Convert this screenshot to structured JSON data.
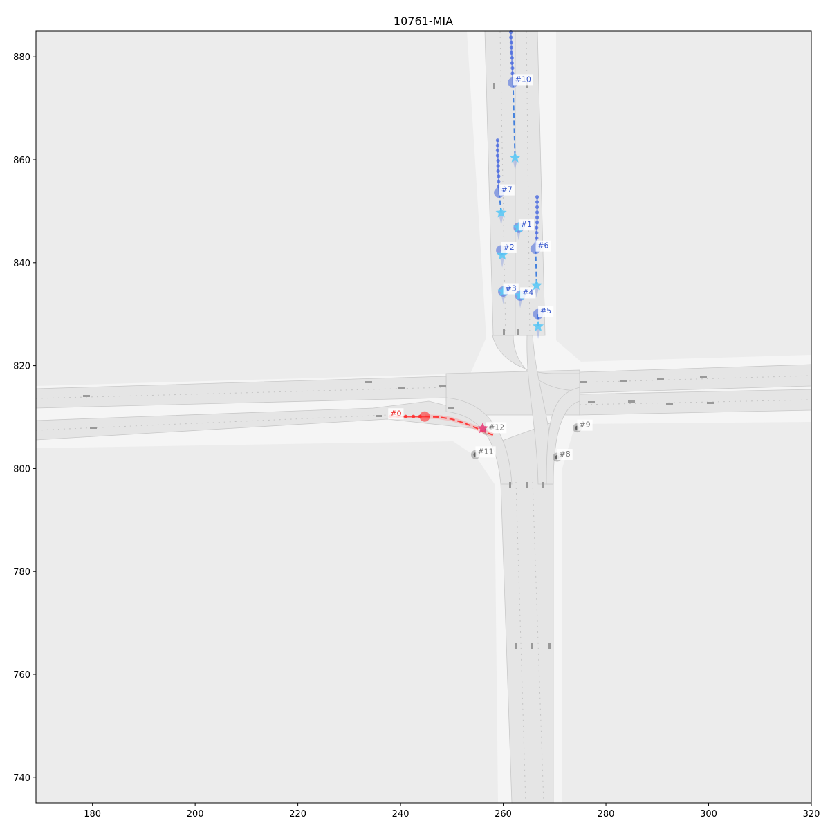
{
  "chart_data": {
    "type": "scatter",
    "title": "10761-MIA",
    "xlabel": "",
    "ylabel": "",
    "xlim": [
      169.0,
      320.0
    ],
    "ylim": [
      735.0,
      885.0
    ],
    "xticks": [
      "180",
      "200",
      "220",
      "240",
      "260",
      "280",
      "300",
      "320"
    ],
    "yticks": [
      "740",
      "760",
      "780",
      "800",
      "820",
      "840",
      "860",
      "880"
    ],
    "grid": false,
    "colors": {
      "background": "#ececec",
      "ego": "#ff2a2a",
      "ego_target": "#e8407a",
      "agent": "#4466dd",
      "agent_target": "#5bc8f5",
      "static": "#888888",
      "label_blue": "#3355cc",
      "label_red": "#ee2222",
      "label_gray": "#777777"
    },
    "ego": {
      "label": "#0",
      "current": [
        244.7,
        810.1
      ],
      "history": [
        [
          238.0,
          810.1
        ],
        [
          239.5,
          810.1
        ],
        [
          241.0,
          810.1
        ],
        [
          242.5,
          810.1
        ],
        [
          243.8,
          810.1
        ]
      ],
      "future": [
        [
          247.5,
          810.0
        ],
        [
          250.0,
          809.6
        ],
        [
          252.5,
          808.8
        ],
        [
          254.5,
          808.0
        ],
        [
          256.0,
          807.3
        ],
        [
          258.0,
          806.5
        ]
      ],
      "target": [
        256.0,
        807.8
      ]
    },
    "agents": [
      {
        "label": "#1",
        "current": [
          263.0,
          846.8
        ],
        "target": [
          263.0,
          846.8
        ],
        "history": []
      },
      {
        "label": "#2",
        "current": [
          259.6,
          842.4
        ],
        "target": [
          259.8,
          841.5
        ],
        "history": []
      },
      {
        "label": "#3",
        "current": [
          260.0,
          834.4
        ],
        "target": [
          260.0,
          834.4
        ],
        "history": []
      },
      {
        "label": "#4",
        "current": [
          263.3,
          833.6
        ],
        "target": [
          263.3,
          833.6
        ],
        "history": []
      },
      {
        "label": "#5",
        "current": [
          266.8,
          830.0
        ],
        "target": [
          266.8,
          827.6
        ],
        "history": []
      },
      {
        "label": "#6",
        "current": [
          266.3,
          842.7
        ],
        "target": [
          266.5,
          835.6
        ],
        "history": [
          [
            266.6,
            852.8
          ],
          [
            266.6,
            851.8
          ],
          [
            266.6,
            850.8
          ],
          [
            266.6,
            849.8
          ],
          [
            266.6,
            848.8
          ],
          [
            266.6,
            847.8
          ],
          [
            266.5,
            846.8
          ],
          [
            266.5,
            845.8
          ],
          [
            266.5,
            844.8
          ],
          [
            266.4,
            843.8
          ]
        ]
      },
      {
        "label": "#7",
        "current": [
          259.2,
          853.6
        ],
        "target": [
          259.6,
          849.7
        ],
        "history": [
          [
            258.9,
            863.8
          ],
          [
            258.9,
            862.8
          ],
          [
            258.9,
            861.8
          ],
          [
            258.9,
            860.8
          ],
          [
            259.0,
            859.8
          ],
          [
            259.0,
            858.8
          ],
          [
            259.0,
            857.8
          ],
          [
            259.1,
            856.8
          ],
          [
            259.1,
            855.8
          ],
          [
            259.1,
            854.8
          ]
        ]
      },
      {
        "label": "#10",
        "current": [
          261.9,
          875.0
        ],
        "target": [
          262.3,
          860.4
        ],
        "history": [
          [
            261.5,
            884.8
          ],
          [
            261.5,
            883.8
          ],
          [
            261.6,
            882.8
          ],
          [
            261.6,
            881.8
          ],
          [
            261.6,
            880.8
          ],
          [
            261.7,
            879.8
          ],
          [
            261.7,
            878.8
          ],
          [
            261.8,
            877.8
          ],
          [
            261.8,
            876.8
          ]
        ]
      }
    ],
    "static_agents": [
      {
        "label": "#8",
        "position": [
          270.5,
          802.2
        ]
      },
      {
        "label": "#9",
        "position": [
          274.4,
          807.9
        ]
      },
      {
        "label": "#11",
        "position": [
          254.6,
          802.7
        ]
      },
      {
        "label": "#12",
        "position": [
          256.7,
          807.4
        ]
      }
    ]
  }
}
